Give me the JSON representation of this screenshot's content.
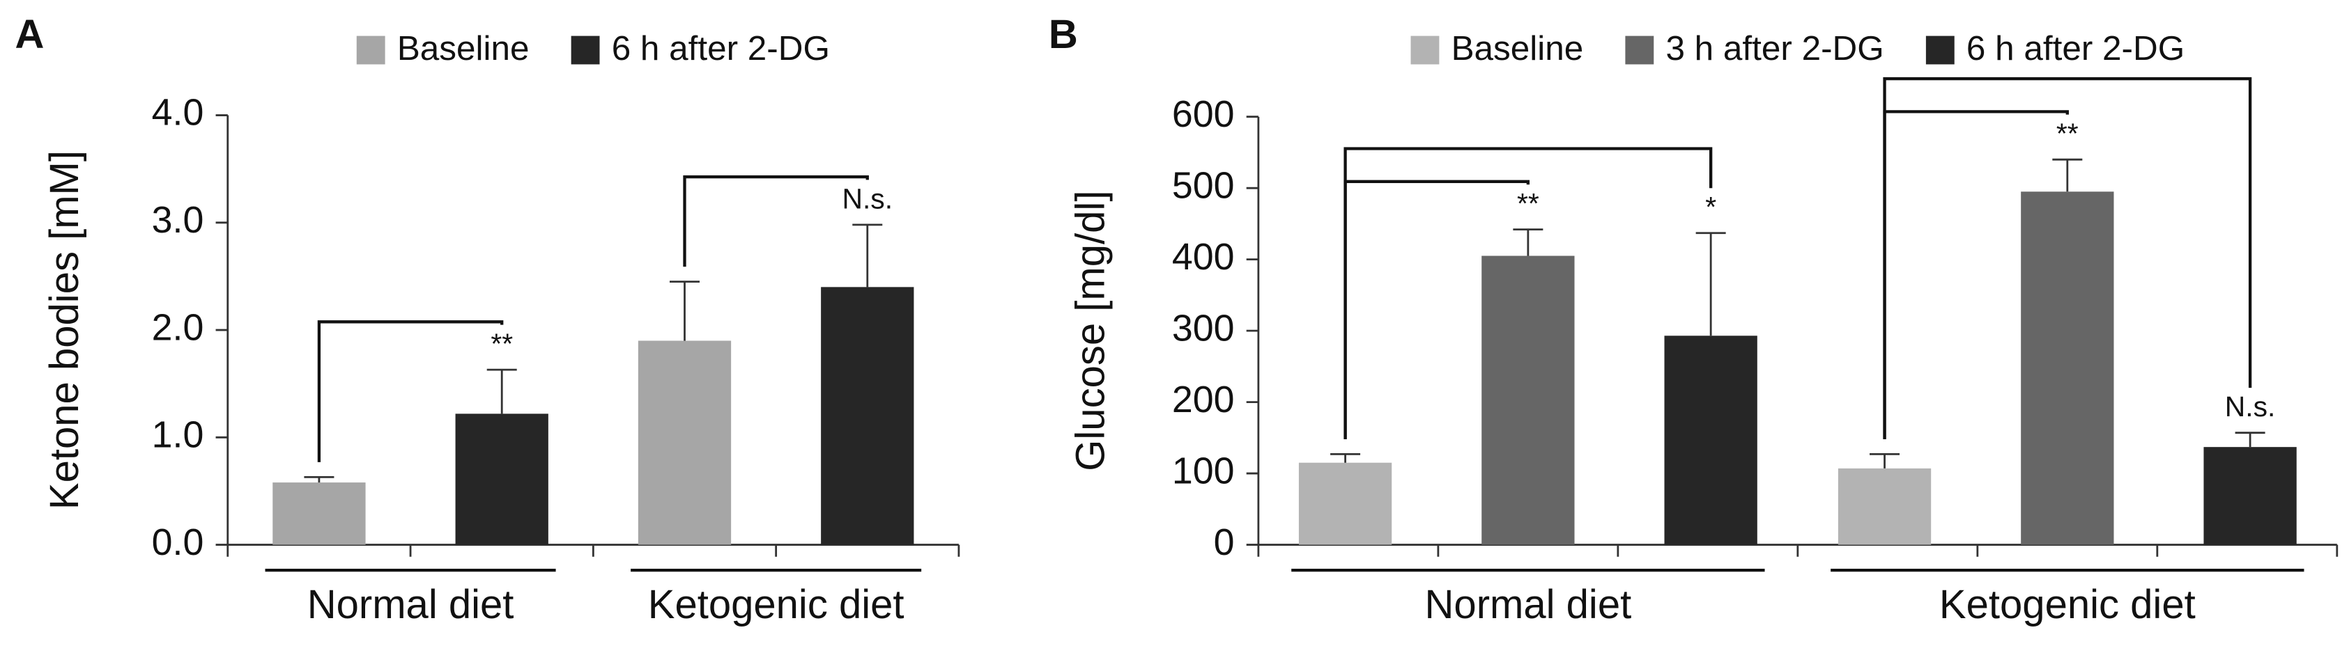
{
  "chart_data": [
    {
      "type": "bar",
      "panel": "A",
      "y_label": "Ketone bodies [mM]",
      "categories": [
        "Normal diet",
        "Ketogenic diet"
      ],
      "series": [
        {
          "name": "Baseline",
          "color": "#a6a6a6",
          "values": [
            0.58,
            1.9
          ],
          "errors": [
            0.05,
            0.55
          ],
          "significance": [
            null,
            null
          ]
        },
        {
          "name": "6 h after 2-DG",
          "color": "#262626",
          "values": [
            1.22,
            2.4
          ],
          "errors": [
            0.41,
            0.58
          ],
          "significance": [
            "**",
            "N.s."
          ]
        }
      ],
      "ylim": [
        0,
        4
      ],
      "yticks": [
        {
          "value": 0,
          "label": "0.0"
        },
        {
          "value": 1,
          "label": "1.0"
        },
        {
          "value": 2,
          "label": "2.0"
        },
        {
          "value": 3,
          "label": "3.0"
        },
        {
          "value": 4,
          "label": "4.0"
        }
      ]
    },
    {
      "type": "bar",
      "panel": "B",
      "y_label": "Glucose [mg/dl]",
      "categories": [
        "Normal diet",
        "Ketogenic diet"
      ],
      "series": [
        {
          "name": "Baseline",
          "color": "#b3b3b3",
          "values": [
            115,
            107
          ],
          "errors": [
            12,
            20
          ],
          "significance": [
            null,
            null
          ]
        },
        {
          "name": "3 h after 2-DG",
          "color": "#666666",
          "values": [
            405,
            495
          ],
          "errors": [
            37,
            45
          ],
          "significance": [
            "**",
            "**"
          ]
        },
        {
          "name": "6 h after 2-DG",
          "color": "#262626",
          "values": [
            293,
            137
          ],
          "errors": [
            144,
            20
          ],
          "significance": [
            "*",
            "N.s."
          ]
        }
      ],
      "ylim": [
        0,
        600
      ],
      "yticks": [
        0,
        100,
        200,
        300,
        400,
        500,
        600
      ]
    }
  ]
}
